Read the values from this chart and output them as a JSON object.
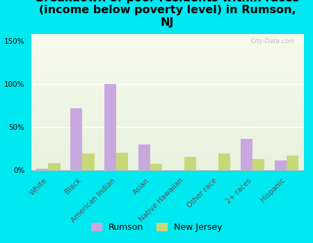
{
  "title": "Breakdown of poor residents within races\n(income below poverty level) in Rumson,\nNJ",
  "categories": [
    "White",
    "Black",
    "American Indian",
    "Asian",
    "Native Hawaiian",
    "Other race",
    "2+ races",
    "Hispanic"
  ],
  "rumson": [
    2,
    72,
    100,
    30,
    0,
    0,
    36,
    11
  ],
  "new_jersey": [
    8,
    19,
    20,
    7,
    15,
    19,
    13,
    17
  ],
  "rumson_color": "#c9a8e0",
  "nj_color": "#c8d878",
  "bg_color": "#00e8f0",
  "plot_bg_color": "#e8f2d8",
  "ylabel_ticks": [
    "0%",
    "50%",
    "100%",
    "150%"
  ],
  "yticks": [
    0,
    50,
    100,
    150
  ],
  "ylim": [
    0,
    158
  ],
  "title_fontsize": 11.5,
  "tick_fontsize": 7.5,
  "legend_fontsize": 9,
  "watermark": "City-Data.com"
}
